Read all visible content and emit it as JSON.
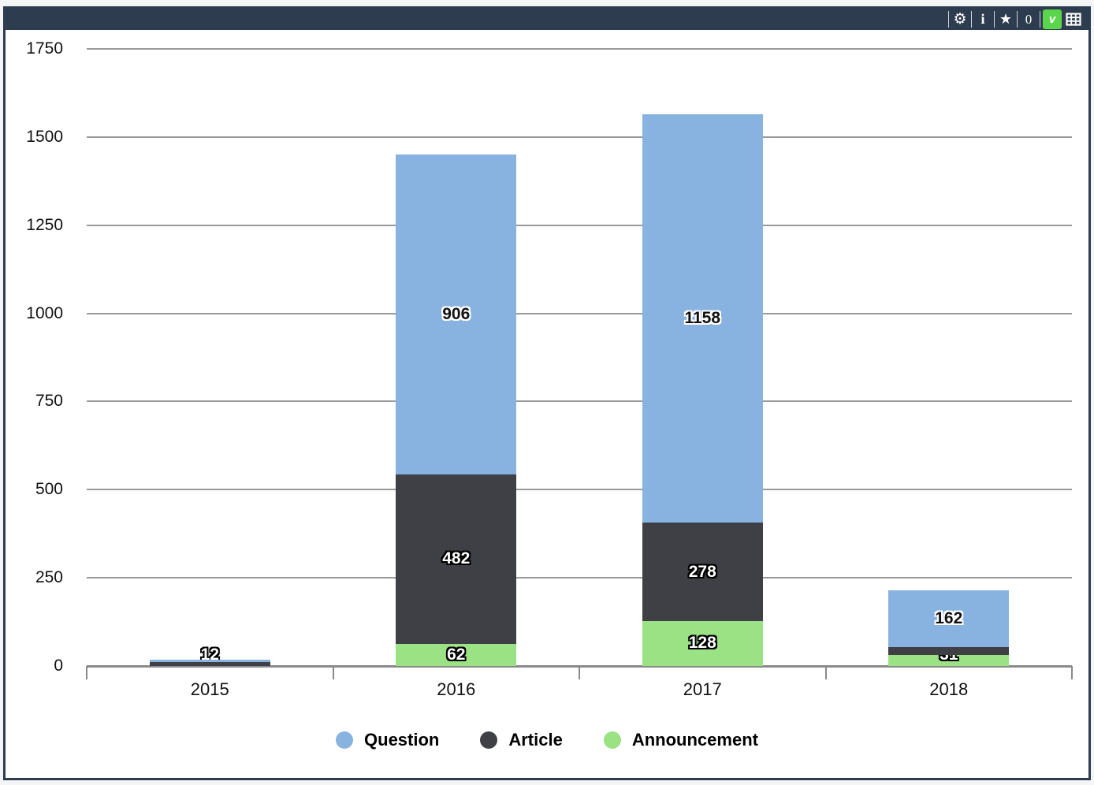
{
  "header": {
    "toolbar": {
      "count": "0",
      "v_button_label": "v",
      "v_button_color": "#5bd54b",
      "bar_color": "#2d3c4e"
    }
  },
  "chart_data": {
    "type": "bar",
    "stacked": true,
    "title": "",
    "xlabel": "",
    "ylabel": "",
    "categories": [
      "2015",
      "2016",
      "2017",
      "2018"
    ],
    "series": [
      {
        "name": "Announcement",
        "color": "#9be284",
        "values": [
          0,
          62,
          128,
          31
        ],
        "labels": [
          "",
          "62",
          "128",
          "31"
        ],
        "label_style": "outline-black"
      },
      {
        "name": "Article",
        "color": "#3e4045",
        "values": [
          12,
          482,
          278,
          22
        ],
        "labels": [
          "12",
          "482",
          "278",
          ""
        ],
        "label_style": "outline-black"
      },
      {
        "name": "Question",
        "color": "#88b3e1",
        "values": [
          5,
          906,
          1158,
          162
        ],
        "labels": [
          "",
          "906",
          "1158",
          "162"
        ],
        "label_style": "outline-white"
      }
    ],
    "legend": [
      "Question",
      "Article",
      "Announcement"
    ],
    "legend_position": "bottom",
    "yticks": [
      0,
      250,
      500,
      750,
      1000,
      1250,
      1500,
      1750
    ],
    "ylim": [
      0,
      1750
    ],
    "grid": true,
    "gridline_color": "#999999",
    "axis_color": "#8a8a8a"
  }
}
